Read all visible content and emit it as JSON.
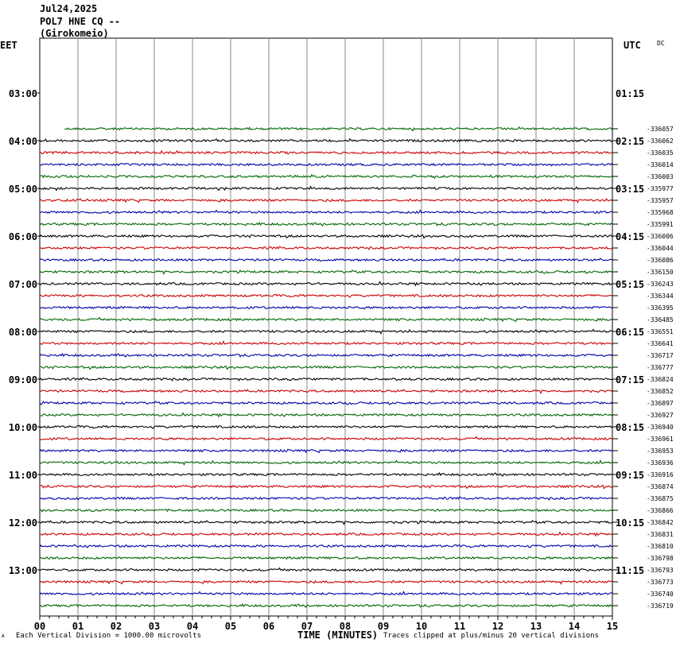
{
  "header": {
    "date": "Jul24,2025",
    "station": "POL7 HNE CQ --",
    "location": "(Girokomeio)"
  },
  "left_timezone": "EET",
  "right_timezone": "UTC",
  "dc_label": "DC",
  "footer": {
    "left_mark": "A",
    "scale_note": "Each Vertical Division = 1000.00 microvolts",
    "xlabel": "TIME (MINUTES)",
    "clip_note": "Traces clipped at plus/minus 20 vertical divisions"
  },
  "chart_data": {
    "type": "line",
    "title": "POL7 HNE CQ -- (Girokomeio)",
    "xlabel": "TIME (MINUTES)",
    "ylabel": "",
    "x_ticks": [
      "00",
      "01",
      "02",
      "03",
      "04",
      "05",
      "06",
      "07",
      "08",
      "09",
      "10",
      "11",
      "12",
      "13",
      "14",
      "15"
    ],
    "xlim": [
      0,
      15
    ],
    "left_hour_labels": [
      "03:00",
      "04:00",
      "05:00",
      "06:00",
      "07:00",
      "08:00",
      "09:00",
      "10:00",
      "11:00",
      "12:00",
      "13:00"
    ],
    "right_hour_labels": [
      "01:15",
      "02:15",
      "03:15",
      "04:15",
      "05:15",
      "06:15",
      "07:15",
      "08:15",
      "09:15",
      "10:15",
      "11:15"
    ],
    "trace_colors": [
      "#000000",
      "#cc0000",
      "#0000aa",
      "#006600"
    ],
    "first_trace_start_minute": 0.65,
    "traces": [
      {
        "color_index": 3,
        "value": "-336057"
      },
      {
        "color_index": 0,
        "value": "-336062"
      },
      {
        "color_index": 1,
        "value": "-336035"
      },
      {
        "color_index": 2,
        "value": "-336014"
      },
      {
        "color_index": 3,
        "value": "-336003"
      },
      {
        "color_index": 0,
        "value": "-335977"
      },
      {
        "color_index": 1,
        "value": "-335957"
      },
      {
        "color_index": 2,
        "value": "-335968"
      },
      {
        "color_index": 3,
        "value": "-335991"
      },
      {
        "color_index": 0,
        "value": "-336006"
      },
      {
        "color_index": 1,
        "value": "-336044"
      },
      {
        "color_index": 2,
        "value": "-336086"
      },
      {
        "color_index": 3,
        "value": "-336150"
      },
      {
        "color_index": 0,
        "value": "-336243"
      },
      {
        "color_index": 1,
        "value": "-336344"
      },
      {
        "color_index": 2,
        "value": "-336395"
      },
      {
        "color_index": 3,
        "value": "-336485"
      },
      {
        "color_index": 0,
        "value": "-336551"
      },
      {
        "color_index": 1,
        "value": "-336641"
      },
      {
        "color_index": 2,
        "value": "-336717"
      },
      {
        "color_index": 3,
        "value": "-336777"
      },
      {
        "color_index": 0,
        "value": "-336824"
      },
      {
        "color_index": 1,
        "value": "-336852"
      },
      {
        "color_index": 2,
        "value": "-336897"
      },
      {
        "color_index": 3,
        "value": "-336927"
      },
      {
        "color_index": 0,
        "value": "-336940"
      },
      {
        "color_index": 1,
        "value": "-336961"
      },
      {
        "color_index": 2,
        "value": "-336953"
      },
      {
        "color_index": 3,
        "value": "-336936"
      },
      {
        "color_index": 0,
        "value": "-336916"
      },
      {
        "color_index": 1,
        "value": "-336874"
      },
      {
        "color_index": 2,
        "value": "-336875"
      },
      {
        "color_index": 3,
        "value": "-336866"
      },
      {
        "color_index": 0,
        "value": "-336842"
      },
      {
        "color_index": 1,
        "value": "-336831"
      },
      {
        "color_index": 2,
        "value": "-336810"
      },
      {
        "color_index": 3,
        "value": "-336798"
      },
      {
        "color_index": 0,
        "value": "-336793"
      },
      {
        "color_index": 1,
        "value": "-336773"
      },
      {
        "color_index": 2,
        "value": "-336740"
      },
      {
        "color_index": 3,
        "value": "-336719"
      }
    ]
  }
}
